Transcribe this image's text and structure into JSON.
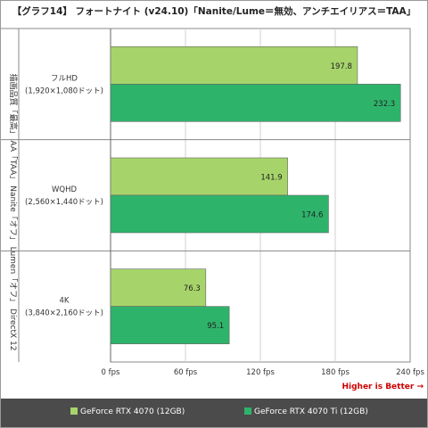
{
  "title": "【グラフ14】 フォートナイト (v24.10)「Nanite/Lume＝無効、アンチエイリアス＝TAA」",
  "chart_data": {
    "type": "bar",
    "orientation": "horizontal",
    "categories": [
      {
        "name": "フルHD",
        "resolution": "(1,920×1,080ドット)"
      },
      {
        "name": "WQHD",
        "resolution": "(2,560×1,440ドット)"
      },
      {
        "name": "4K",
        "resolution": "(3,840×2,160ドット)"
      }
    ],
    "series": [
      {
        "name": "GeForce RTX 4070 (12GB)",
        "color": "#a6d46a",
        "values": [
          197.8,
          141.9,
          76.3
        ]
      },
      {
        "name": "GeForce RTX 4070 Ti (12GB)",
        "color": "#2eb36b",
        "values": [
          232.3,
          174.6,
          95.1
        ]
      }
    ],
    "xticks": [
      0,
      60,
      120,
      180,
      240
    ],
    "xtick_unit": "fps",
    "xlim": [
      0,
      240
    ],
    "y_axis_label": "描画品質「最高」 AA「TAA」 Nanite「オフ」 Lumen「オフ」 DirectX 12",
    "annotation": "Higher is Better →",
    "annotation_color": "#cc0000",
    "grid": "vertical",
    "legend_position": "bottom"
  }
}
